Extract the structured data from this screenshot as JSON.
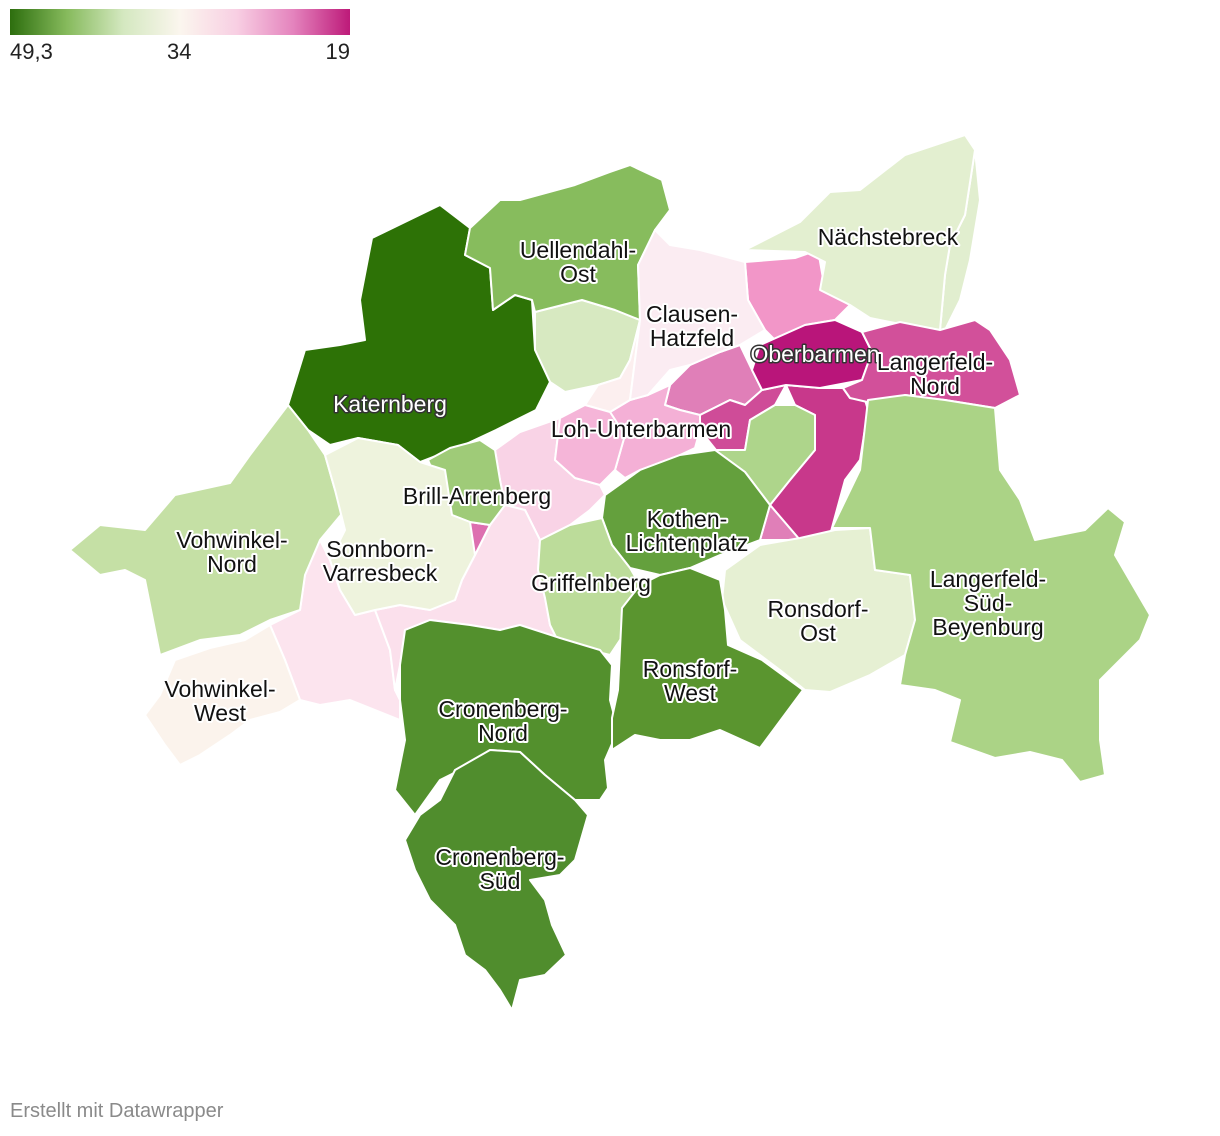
{
  "legend": {
    "min_label": "49,3",
    "mid_label": "34",
    "max_label": "19",
    "colors": [
      "#2d6e0e",
      "#86ba5c",
      "#d4e8c0",
      "#fbf6ee",
      "#f8cfe3",
      "#e483bd",
      "#bd1a79"
    ]
  },
  "districts": [
    {
      "name": "Katernberg",
      "label": [
        "Katernberg"
      ],
      "value": 49.3,
      "color": "#2d7206",
      "label_style": "light"
    },
    {
      "name": "Uellendahl-Ost",
      "label": [
        "Uellendahl-",
        "Ost"
      ],
      "value": 44,
      "color": "#87bc5d",
      "label_style": "dark"
    },
    {
      "name": "Clausen-Hatzfeld",
      "label": [
        "Clausen-",
        "Hatzfeld"
      ],
      "value": 32,
      "color": "#fbecf2",
      "label_style": "dark"
    },
    {
      "name": "Nächstebreck",
      "label": [
        "Nächstebreck"
      ],
      "value": 37,
      "color": "#e3efd0",
      "label_style": "dark"
    },
    {
      "name": "Oberbarmen",
      "label": [
        "Oberbarmen"
      ],
      "value": 19,
      "color": "#b9157a",
      "label_style": "light"
    },
    {
      "name": "Langerfeld-Nord",
      "label": [
        "Langerfeld-",
        "Nord"
      ],
      "value": 22,
      "color": "#d2509a",
      "label_style": "dark"
    },
    {
      "name": "Loh-Unterbarmen",
      "label": [
        "Loh-Unterbarmen"
      ],
      "value": 28,
      "color": "#f5b5d8",
      "label_style": "dark"
    },
    {
      "name": "Brill-Arrenberg",
      "label": [
        "Brill-Arrenberg"
      ],
      "value": 42,
      "color": "#9fcb78",
      "label_style": "dark"
    },
    {
      "name": "Vohwinkel-Nord",
      "label": [
        "Vohwinkel-",
        "Nord"
      ],
      "value": 40,
      "color": "#c5e0a5",
      "label_style": "dark"
    },
    {
      "name": "Sonnborn-Varresbeck",
      "label": [
        "Sonnborn-",
        "Varresbeck"
      ],
      "value": 36,
      "color": "#eef3dd",
      "label_style": "dark"
    },
    {
      "name": "Kothen-Lichtenplatz",
      "label": [
        "Kothen-",
        "Lichtenplatz"
      ],
      "value": 46,
      "color": "#64a03d",
      "label_style": "dark"
    },
    {
      "name": "Griffelnberg",
      "label": [
        "Griffelnberg"
      ],
      "value": 40,
      "color": "#bcdc9a",
      "label_style": "dark"
    },
    {
      "name": "Ronsdorf-Ost",
      "label": [
        "Ronsdorf-",
        "Ost"
      ],
      "value": 37,
      "color": "#e6f0d3",
      "label_style": "dark"
    },
    {
      "name": "Langerfeld-Süd-Beyenburg",
      "label": [
        "Langerfeld-",
        "Süd-",
        "Beyenburg"
      ],
      "value": 41,
      "color": "#abd386",
      "label_style": "dark"
    },
    {
      "name": "Vohwinkel-West",
      "label": [
        "Vohwinkel-",
        "West"
      ],
      "value": 34,
      "color": "#fbf3ec",
      "label_style": "dark"
    },
    {
      "name": "Cronenberg-Nord",
      "label": [
        "Cronenberg-",
        "Nord"
      ],
      "value": 47,
      "color": "#53902d",
      "label_style": "dark"
    },
    {
      "name": "Ronsforf-West",
      "label": [
        "Ronsforf-",
        "West"
      ],
      "value": 46,
      "color": "#5a952f",
      "label_style": "dark"
    },
    {
      "name": "Cronenberg-Süd",
      "label": [
        "Cronenberg-",
        "Süd"
      ],
      "value": 47,
      "color": "#508d2d",
      "label_style": "dark"
    }
  ],
  "unlabeled_districts": [
    {
      "value": 39,
      "color": "#d7e9c1"
    },
    {
      "value": 26,
      "color": "#f296c8"
    },
    {
      "value": 24,
      "color": "#e07fb8"
    },
    {
      "value": 23,
      "color": "#cf4c98"
    },
    {
      "value": 21,
      "color": "#c8388b"
    },
    {
      "value": 29,
      "color": "#f4b0d6"
    },
    {
      "value": 31,
      "color": "#f9d3e6"
    },
    {
      "value": 33,
      "color": "#fce4ee"
    },
    {
      "value": 33,
      "color": "#fbe0ec"
    },
    {
      "value": 38,
      "color": "#e5f0d6"
    },
    {
      "value": 41,
      "color": "#aed58b"
    },
    {
      "value": 23,
      "color": "#e07fb8"
    },
    {
      "value": 32,
      "color": "#fcefef"
    },
    {
      "value": 27,
      "color": "#dd6fb0"
    },
    {
      "value": 39,
      "color": "#e1eecf"
    }
  ],
  "credit": "Erstellt mit Datawrapper"
}
